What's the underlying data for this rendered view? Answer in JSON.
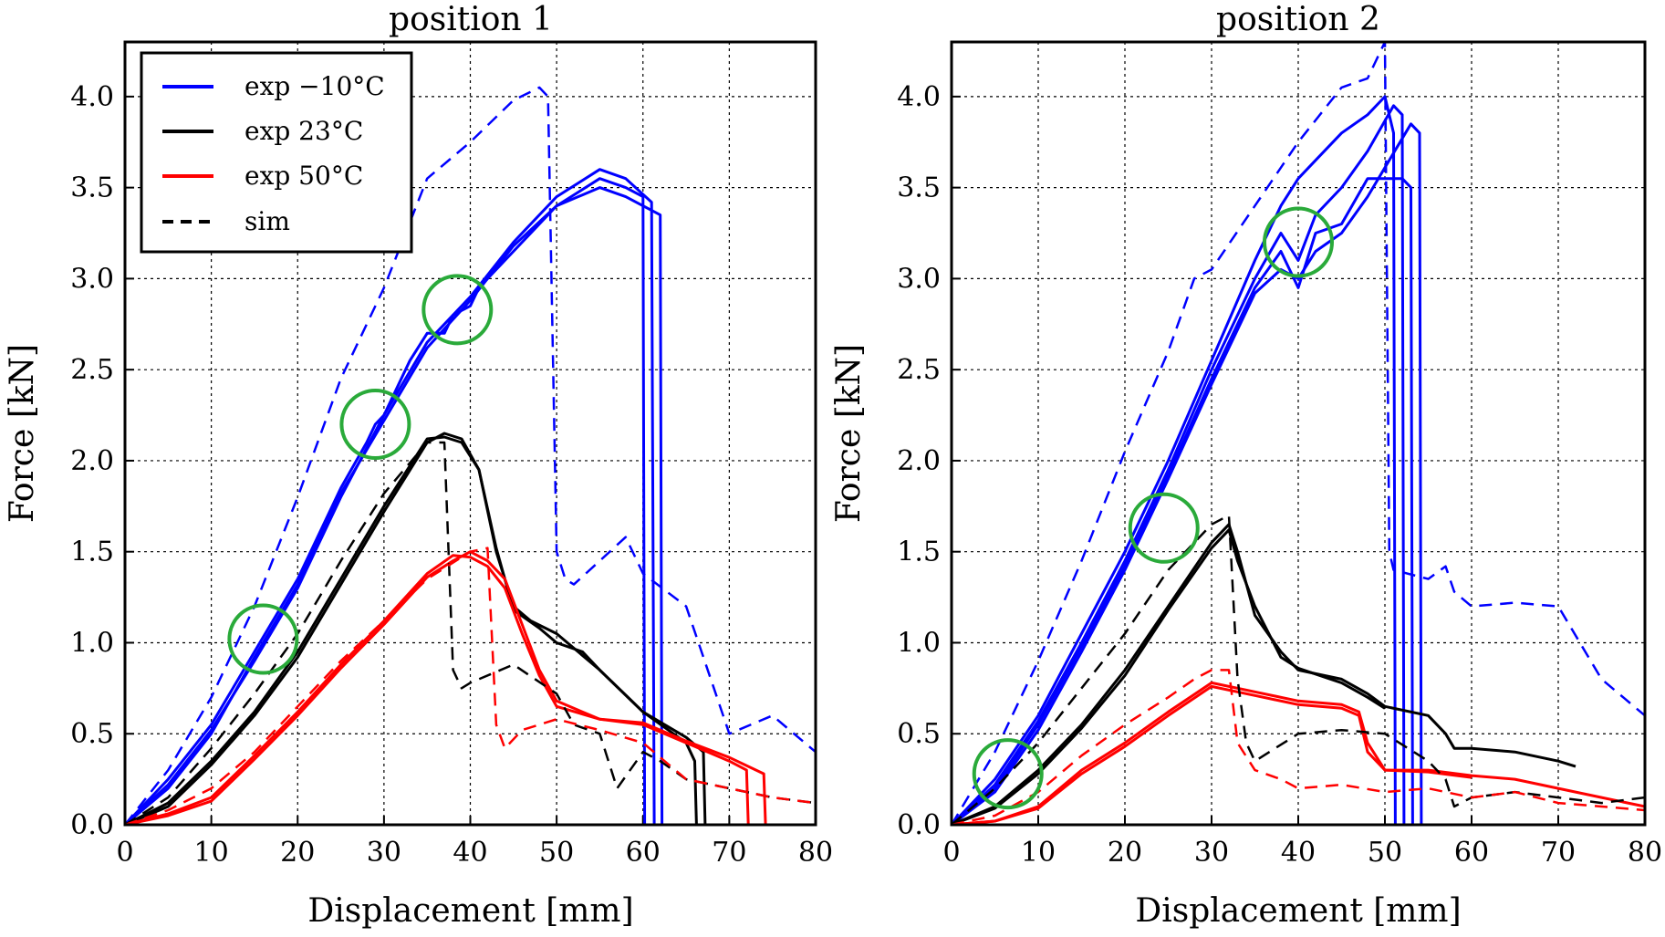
{
  "colors": {
    "blue": "#0000ff",
    "black": "#000000",
    "red": "#ff0000",
    "green": "#2aaa3a",
    "grid": "#000000"
  },
  "legend": {
    "entries": [
      {
        "label": "exp −10°C",
        "color": "#0000ff",
        "dash": false
      },
      {
        "label": "exp 23°C",
        "color": "#000000",
        "dash": false
      },
      {
        "label": "exp 50°C",
        "color": "#ff0000",
        "dash": false
      },
      {
        "label": "sim",
        "color": "#000000",
        "dash": true
      }
    ]
  },
  "chart_data": [
    {
      "type": "line",
      "title": "position 1",
      "xlabel": "Displacement [mm]",
      "ylabel": "Force [kN]",
      "xlim": [
        0,
        80
      ],
      "ylim": [
        0,
        4.3
      ],
      "xticks": [
        "0",
        "10",
        "20",
        "30",
        "40",
        "50",
        "60",
        "70",
        "80"
      ],
      "yticks": [
        "0.0",
        "0.5",
        "1.0",
        "1.5",
        "2.0",
        "2.5",
        "3.0",
        "3.5",
        "4.0"
      ],
      "grid": true,
      "legend_position": "top-left",
      "series": [
        {
          "name": "exp −10°C",
          "color": "#0000ff",
          "dash": false,
          "x": [
            0,
            5,
            10,
            15,
            20,
            25,
            28,
            29,
            30,
            33,
            35,
            37,
            38,
            40,
            41,
            45,
            50,
            55,
            58,
            60,
            60.2
          ],
          "y": [
            0,
            0.25,
            0.55,
            0.95,
            1.35,
            1.85,
            2.1,
            2.2,
            2.25,
            2.55,
            2.7,
            2.7,
            2.8,
            2.85,
            2.95,
            3.15,
            3.4,
            3.55,
            3.5,
            3.45,
            0
          ]
        },
        {
          "name": "exp −10°C",
          "color": "#0000ff",
          "dash": false,
          "x": [
            0,
            5,
            10,
            15,
            20,
            25,
            30,
            35,
            40,
            45,
            50,
            55,
            58,
            61,
            61.3
          ],
          "y": [
            0,
            0.22,
            0.52,
            0.9,
            1.3,
            1.8,
            2.25,
            2.65,
            2.9,
            3.2,
            3.45,
            3.6,
            3.55,
            3.42,
            0
          ]
        },
        {
          "name": "exp −10°C",
          "color": "#0000ff",
          "dash": false,
          "x": [
            0,
            5,
            10,
            15,
            20,
            25,
            30,
            35,
            40,
            45,
            50,
            55,
            58,
            62,
            62.2
          ],
          "y": [
            0,
            0.2,
            0.5,
            0.92,
            1.32,
            1.82,
            2.22,
            2.62,
            2.88,
            3.18,
            3.4,
            3.5,
            3.45,
            3.35,
            0
          ]
        },
        {
          "name": "exp 23°C",
          "color": "#000000",
          "dash": false,
          "x": [
            0,
            5,
            10,
            15,
            20,
            25,
            30,
            35,
            37,
            39,
            41,
            43,
            45,
            47,
            50,
            55,
            60,
            65,
            66,
            66.2
          ],
          "y": [
            0,
            0.12,
            0.35,
            0.62,
            0.95,
            1.35,
            1.75,
            2.12,
            2.13,
            2.1,
            1.95,
            1.5,
            1.2,
            1.12,
            1.05,
            0.85,
            0.62,
            0.45,
            0.35,
            0
          ]
        },
        {
          "name": "exp 23°C",
          "color": "#000000",
          "dash": false,
          "x": [
            0,
            5,
            10,
            15,
            20,
            25,
            30,
            35,
            37,
            39,
            41,
            43,
            45,
            48,
            50,
            53,
            55,
            60,
            65,
            67,
            67.2
          ],
          "y": [
            0,
            0.1,
            0.33,
            0.6,
            0.92,
            1.32,
            1.72,
            2.1,
            2.15,
            2.12,
            1.95,
            1.52,
            1.18,
            1.08,
            1.0,
            0.95,
            0.85,
            0.62,
            0.48,
            0.4,
            0
          ]
        },
        {
          "name": "exp 50°C",
          "color": "#ff0000",
          "dash": false,
          "x": [
            0,
            5,
            10,
            15,
            20,
            25,
            30,
            35,
            38,
            40,
            42,
            44,
            46,
            48,
            50,
            55,
            60,
            65,
            70,
            72,
            72.2
          ],
          "y": [
            0,
            0.06,
            0.15,
            0.38,
            0.62,
            0.88,
            1.12,
            1.38,
            1.48,
            1.47,
            1.42,
            1.3,
            1.05,
            0.82,
            0.65,
            0.58,
            0.55,
            0.45,
            0.35,
            0.3,
            0
          ]
        },
        {
          "name": "exp 50°C",
          "color": "#ff0000",
          "dash": false,
          "x": [
            0,
            5,
            10,
            15,
            20,
            25,
            30,
            35,
            38,
            40,
            42,
            44,
            46,
            48,
            50,
            55,
            60,
            65,
            70,
            74,
            74.2
          ],
          "y": [
            0,
            0.05,
            0.13,
            0.36,
            0.6,
            0.86,
            1.1,
            1.36,
            1.45,
            1.5,
            1.45,
            1.35,
            1.1,
            0.85,
            0.68,
            0.58,
            0.56,
            0.46,
            0.37,
            0.28,
            0
          ]
        },
        {
          "name": "sim",
          "color": "#0000ff",
          "dash": true,
          "x": [
            0,
            5,
            10,
            15,
            20,
            25,
            30,
            35,
            40,
            45,
            48,
            49,
            50,
            51,
            52,
            55,
            58,
            60,
            65,
            70,
            75,
            80
          ],
          "y": [
            0,
            0.3,
            0.7,
            1.2,
            1.8,
            2.45,
            2.95,
            3.55,
            3.75,
            3.98,
            4.05,
            4.0,
            1.5,
            1.35,
            1.32,
            1.45,
            1.58,
            1.38,
            1.2,
            0.5,
            0.6,
            0.4
          ]
        },
        {
          "name": "sim",
          "color": "#000000",
          "dash": true,
          "x": [
            0,
            5,
            10,
            15,
            20,
            25,
            30,
            35,
            37,
            38,
            39,
            40,
            45,
            50,
            52,
            55,
            57,
            60,
            62,
            65,
            70,
            75,
            80
          ],
          "y": [
            0,
            0.15,
            0.42,
            0.72,
            1.05,
            1.45,
            1.82,
            2.1,
            2.1,
            0.85,
            0.75,
            0.78,
            0.88,
            0.72,
            0.55,
            0.5,
            0.2,
            0.4,
            0.35,
            0.25,
            0.2,
            0.15,
            0.12
          ]
        },
        {
          "name": "sim",
          "color": "#ff0000",
          "dash": true,
          "x": [
            0,
            5,
            10,
            15,
            20,
            25,
            30,
            35,
            40,
            42,
            43,
            44,
            46,
            50,
            55,
            60,
            65,
            70,
            75,
            80
          ],
          "y": [
            0,
            0.08,
            0.2,
            0.4,
            0.65,
            0.9,
            1.12,
            1.35,
            1.5,
            1.52,
            0.55,
            0.42,
            0.52,
            0.58,
            0.52,
            0.45,
            0.25,
            0.2,
            0.15,
            0.12
          ]
        }
      ],
      "annotations": [
        {
          "type": "circle",
          "x": 16,
          "y": 1.02,
          "label": ""
        },
        {
          "type": "circle",
          "x": 29,
          "y": 2.2,
          "label": ""
        },
        {
          "type": "circle",
          "x": 38.5,
          "y": 2.83,
          "label": ""
        }
      ]
    },
    {
      "type": "line",
      "title": "position 2",
      "xlabel": "Displacement [mm]",
      "ylabel": "Force [kN]",
      "xlim": [
        0,
        80
      ],
      "ylim": [
        0,
        4.3
      ],
      "xticks": [
        "0",
        "10",
        "20",
        "30",
        "40",
        "50",
        "60",
        "70",
        "80"
      ],
      "yticks": [
        "0.0",
        "0.5",
        "1.0",
        "1.5",
        "2.0",
        "2.5",
        "3.0",
        "3.5",
        "4.0"
      ],
      "grid": true,
      "series": [
        {
          "name": "exp −10°C",
          "color": "#0000ff",
          "dash": false,
          "x": [
            0,
            5,
            10,
            15,
            20,
            25,
            30,
            35,
            38,
            40,
            42,
            45,
            48,
            50,
            51,
            51.2
          ],
          "y": [
            0,
            0.25,
            0.6,
            1.05,
            1.5,
            2.0,
            2.55,
            3.1,
            3.4,
            3.55,
            3.65,
            3.8,
            3.9,
            4.0,
            3.8,
            0
          ]
        },
        {
          "name": "exp −10°C",
          "color": "#0000ff",
          "dash": false,
          "x": [
            0,
            5,
            10,
            15,
            20,
            25,
            30,
            35,
            38,
            40,
            42,
            45,
            48,
            51,
            52,
            52.2
          ],
          "y": [
            0,
            0.22,
            0.57,
            1.0,
            1.45,
            1.95,
            2.5,
            3.0,
            3.25,
            3.1,
            3.35,
            3.5,
            3.7,
            3.95,
            3.9,
            0
          ]
        },
        {
          "name": "exp −10°C",
          "color": "#0000ff",
          "dash": false,
          "x": [
            0,
            5,
            10,
            15,
            20,
            25,
            30,
            35,
            38,
            40,
            42,
            45,
            48,
            52,
            53,
            53.2
          ],
          "y": [
            0,
            0.2,
            0.55,
            0.98,
            1.42,
            1.92,
            2.45,
            2.95,
            3.15,
            2.95,
            3.25,
            3.3,
            3.55,
            3.55,
            3.5,
            0
          ]
        },
        {
          "name": "exp −10°C",
          "color": "#0000ff",
          "dash": false,
          "x": [
            0,
            5,
            10,
            15,
            20,
            25,
            30,
            35,
            38,
            40,
            42,
            45,
            48,
            53,
            54,
            54.2
          ],
          "y": [
            0,
            0.18,
            0.52,
            0.95,
            1.4,
            1.9,
            2.42,
            2.92,
            3.05,
            3.0,
            3.15,
            3.25,
            3.45,
            3.85,
            3.8,
            0
          ]
        },
        {
          "name": "exp 23°C",
          "color": "#000000",
          "dash": false,
          "x": [
            0,
            5,
            10,
            15,
            20,
            25,
            30,
            32,
            33,
            35,
            38,
            40,
            45,
            48,
            50,
            55,
            57,
            58,
            60,
            65,
            70,
            72
          ],
          "y": [
            0,
            0.1,
            0.3,
            0.55,
            0.85,
            1.2,
            1.55,
            1.65,
            1.5,
            1.15,
            0.95,
            0.85,
            0.8,
            0.72,
            0.65,
            0.6,
            0.5,
            0.42,
            0.42,
            0.4,
            0.35,
            0.32
          ]
        },
        {
          "name": "exp 23°C",
          "color": "#000000",
          "dash": false,
          "x": [
            0,
            5,
            10,
            15,
            20,
            25,
            30,
            32,
            33,
            35,
            38,
            40,
            45,
            48,
            50
          ],
          "y": [
            0,
            0.09,
            0.28,
            0.53,
            0.82,
            1.18,
            1.52,
            1.62,
            1.45,
            1.2,
            0.92,
            0.86,
            0.78,
            0.7,
            0.64
          ]
        },
        {
          "name": "exp 50°C",
          "color": "#ff0000",
          "dash": false,
          "x": [
            0,
            5,
            10,
            15,
            20,
            25,
            30,
            35,
            40,
            45,
            47,
            48,
            50,
            55,
            60,
            65,
            70,
            75,
            80
          ],
          "y": [
            0,
            0.02,
            0.1,
            0.3,
            0.45,
            0.62,
            0.78,
            0.73,
            0.68,
            0.66,
            0.62,
            0.45,
            0.3,
            0.3,
            0.27,
            0.25,
            0.2,
            0.15,
            0.1
          ]
        },
        {
          "name": "exp 50°C",
          "color": "#ff0000",
          "dash": false,
          "x": [
            0,
            5,
            10,
            15,
            20,
            25,
            30,
            35,
            40,
            45,
            47,
            48,
            50,
            55,
            60
          ],
          "y": [
            0,
            0.02,
            0.09,
            0.28,
            0.43,
            0.6,
            0.76,
            0.71,
            0.66,
            0.64,
            0.6,
            0.4,
            0.3,
            0.29,
            0.26
          ]
        },
        {
          "name": "sim",
          "color": "#0000ff",
          "dash": true,
          "x": [
            0,
            5,
            10,
            15,
            20,
            25,
            28,
            30,
            35,
            40,
            45,
            48,
            50,
            50.5,
            51,
            55,
            57,
            58,
            60,
            65,
            70,
            75,
            80
          ],
          "y": [
            0,
            0.4,
            0.9,
            1.45,
            2.05,
            2.6,
            3.0,
            3.05,
            3.4,
            3.75,
            4.05,
            4.1,
            4.3,
            1.5,
            1.4,
            1.35,
            1.42,
            1.28,
            1.2,
            1.22,
            1.2,
            0.8,
            0.6
          ]
        },
        {
          "name": "sim",
          "color": "#000000",
          "dash": true,
          "x": [
            0,
            5,
            10,
            15,
            20,
            25,
            30,
            32,
            33,
            34,
            35,
            40,
            45,
            50,
            55,
            57,
            58,
            60,
            65,
            70,
            75,
            80
          ],
          "y": [
            0,
            0.2,
            0.45,
            0.75,
            1.05,
            1.4,
            1.65,
            1.7,
            0.8,
            0.45,
            0.35,
            0.5,
            0.52,
            0.5,
            0.35,
            0.25,
            0.1,
            0.15,
            0.18,
            0.15,
            0.12,
            0.15
          ]
        },
        {
          "name": "sim",
          "color": "#ff0000",
          "dash": true,
          "x": [
            0,
            5,
            10,
            15,
            20,
            25,
            28,
            30,
            32,
            33,
            35,
            38,
            40,
            45,
            50,
            55,
            60,
            65,
            70,
            75,
            80
          ],
          "y": [
            0,
            0.05,
            0.18,
            0.38,
            0.55,
            0.7,
            0.8,
            0.85,
            0.85,
            0.45,
            0.3,
            0.25,
            0.2,
            0.22,
            0.18,
            0.2,
            0.15,
            0.18,
            0.12,
            0.1,
            0.08
          ]
        }
      ],
      "annotations": [
        {
          "type": "circle",
          "x": 6.5,
          "y": 0.28,
          "label": ""
        },
        {
          "type": "circle",
          "x": 24.5,
          "y": 1.63,
          "label": ""
        },
        {
          "type": "circle",
          "x": 40,
          "y": 3.2,
          "label": ""
        }
      ]
    }
  ]
}
